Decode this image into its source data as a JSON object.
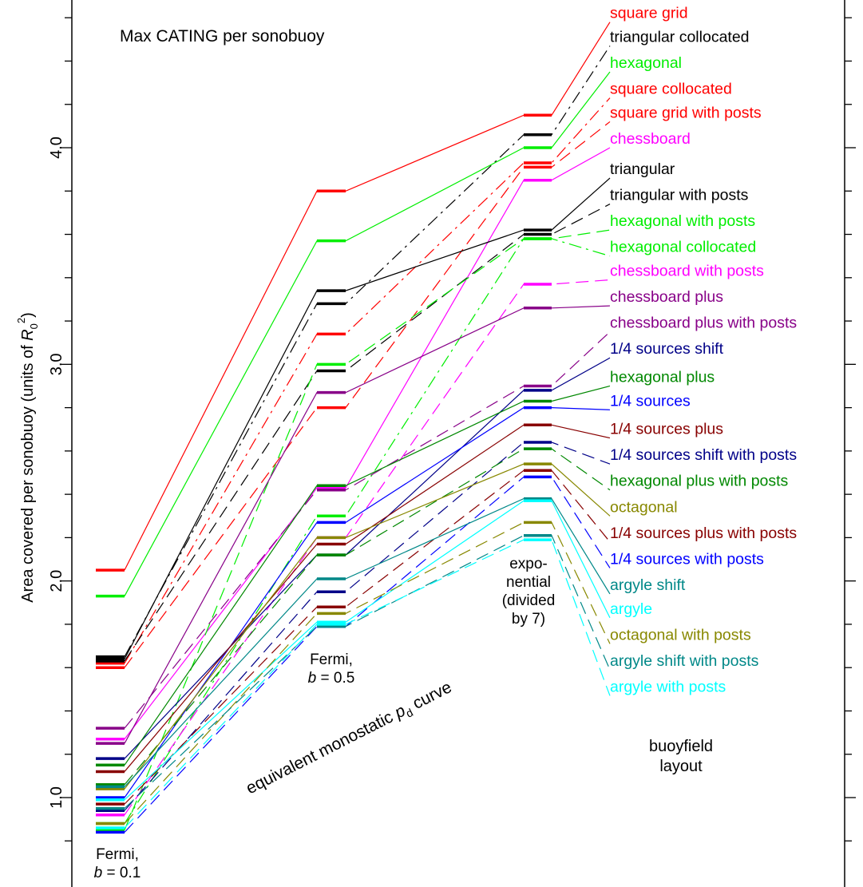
{
  "chart_data": {
    "type": "line",
    "title": "Max CATING per sonobuoy",
    "ylabel_prefix": "Area covered per sonobuoy  (units of ",
    "ylabel_r": "R",
    "ylabel_sub": "0",
    "ylabel_sup": "2",
    "ylabel_suffix": ")",
    "xlabel_prefix": "equivalent monostatic ",
    "xlabel_p": "p",
    "xlabel_sub": "d",
    "xlabel_suffix": " curve",
    "ylim": [
      0.74,
      4.65
    ],
    "ytick_labels": [
      "1.0",
      "2.0",
      "3.0",
      "4.0"
    ],
    "ytick_values": [
      1.0,
      2.0,
      3.0,
      4.0
    ],
    "categories": [
      {
        "lines": [
          "Fermi,",
          "b = 0.1"
        ]
      },
      {
        "lines": [
          "Fermi,",
          "b = 0.5"
        ]
      },
      {
        "lines": [
          "expo-",
          "nential",
          "(divided",
          "by 7)"
        ]
      }
    ],
    "layout_heading": [
      "buoyfield",
      "layout"
    ],
    "series": [
      {
        "name": "square grid",
        "color": "#ff0000",
        "dash": "solid",
        "values": [
          2.05,
          3.8,
          4.15
        ],
        "label_anchor": 4.58
      },
      {
        "name": "triangular collocated",
        "color": "#000000",
        "dash": "dashdot",
        "values": [
          1.65,
          3.28,
          4.06
        ],
        "label_anchor": 4.47
      },
      {
        "name": "hexagonal",
        "color": "#00ee00",
        "dash": "solid",
        "values": [
          1.93,
          3.57,
          4.0
        ],
        "label_anchor": 4.35
      },
      {
        "name": "square collocated",
        "color": "#ff0000",
        "dash": "dashdot",
        "values": [
          1.62,
          3.14,
          3.93
        ],
        "label_anchor": 4.23
      },
      {
        "name": "square grid with posts",
        "color": "#ff0000",
        "dash": "dash",
        "values": [
          1.6,
          2.8,
          3.91
        ],
        "label_anchor": 4.12
      },
      {
        "name": "chessboard",
        "color": "#ff00ff",
        "dash": "solid",
        "values": [
          1.27,
          2.43,
          3.85
        ],
        "label_anchor": 4.0
      },
      {
        "name": "triangular",
        "color": "#000000",
        "dash": "solid",
        "values": [
          1.64,
          3.34,
          3.62
        ],
        "label_anchor": 3.86
      },
      {
        "name": "triangular with posts",
        "color": "#000000",
        "dash": "dash",
        "values": [
          1.63,
          2.97,
          3.6
        ],
        "label_anchor": 3.74
      },
      {
        "name": "hexagonal with posts",
        "color": "#00ee00",
        "dash": "dash",
        "values": [
          0.85,
          3.0,
          3.58
        ],
        "label_anchor": 3.62
      },
      {
        "name": "hexagonal collocated",
        "color": "#00ee00",
        "dash": "dashdot",
        "values": [
          0.88,
          2.3,
          3.58
        ],
        "label_anchor": 3.5
      },
      {
        "name": "chessboard with posts",
        "color": "#ff00ff",
        "dash": "dash",
        "values": [
          0.92,
          2.2,
          3.37
        ],
        "label_anchor": 3.39
      },
      {
        "name": "chessboard plus",
        "color": "#880088",
        "dash": "solid",
        "values": [
          1.25,
          2.87,
          3.26
        ],
        "label_anchor": 3.27
      },
      {
        "name": "chessboard plus with posts",
        "color": "#880088",
        "dash": "dash",
        "values": [
          1.32,
          2.42,
          2.9
        ],
        "label_anchor": 3.15
      },
      {
        "name": "1/4 sources shift",
        "color": "#000088",
        "dash": "solid",
        "values": [
          1.18,
          2.12,
          2.88
        ],
        "label_anchor": 3.03
      },
      {
        "name": "hexagonal plus",
        "color": "#008800",
        "dash": "solid",
        "values": [
          1.15,
          2.44,
          2.83
        ],
        "label_anchor": 2.9
      },
      {
        "name": "1/4 sources",
        "color": "#0000ff",
        "dash": "solid",
        "values": [
          1.0,
          2.27,
          2.8
        ],
        "label_anchor": 2.79
      },
      {
        "name": "1/4 sources plus",
        "color": "#880000",
        "dash": "solid",
        "values": [
          1.12,
          2.17,
          2.72
        ],
        "label_anchor": 2.66
      },
      {
        "name": "1/4 sources shift with posts",
        "color": "#000088",
        "dash": "dash",
        "values": [
          0.94,
          1.95,
          2.64
        ],
        "label_anchor": 2.54
      },
      {
        "name": "hexagonal plus with posts",
        "color": "#008800",
        "dash": "dash",
        "values": [
          1.06,
          2.12,
          2.61
        ],
        "label_anchor": 2.42
      },
      {
        "name": "octagonal",
        "color": "#888800",
        "dash": "solid",
        "values": [
          1.04,
          2.2,
          2.54
        ],
        "label_anchor": 2.3
      },
      {
        "name": "1/4 sources plus with posts",
        "color": "#880000",
        "dash": "dash",
        "values": [
          0.97,
          1.88,
          2.51
        ],
        "label_anchor": 2.18
      },
      {
        "name": "1/4 sources with posts",
        "color": "#0000ff",
        "dash": "dash",
        "values": [
          0.84,
          1.79,
          2.48
        ],
        "label_anchor": 2.06
      },
      {
        "name": "argyle shift",
        "color": "#008888",
        "dash": "solid",
        "values": [
          1.05,
          2.01,
          2.38
        ],
        "label_anchor": 1.94
      },
      {
        "name": "argyle",
        "color": "#00ffff",
        "dash": "solid",
        "values": [
          0.99,
          1.81,
          2.37
        ],
        "label_anchor": 1.83
      },
      {
        "name": "octagonal with posts",
        "color": "#888800",
        "dash": "dash",
        "values": [
          0.88,
          1.85,
          2.27
        ],
        "label_anchor": 1.71
      },
      {
        "name": "argyle shift with posts",
        "color": "#008888",
        "dash": "dash",
        "values": [
          0.95,
          1.79,
          2.21
        ],
        "label_anchor": 1.59
      },
      {
        "name": "argyle with posts",
        "color": "#00ffff",
        "dash": "dash",
        "values": [
          0.86,
          1.8,
          2.19
        ],
        "label_anchor": 1.47
      }
    ]
  }
}
